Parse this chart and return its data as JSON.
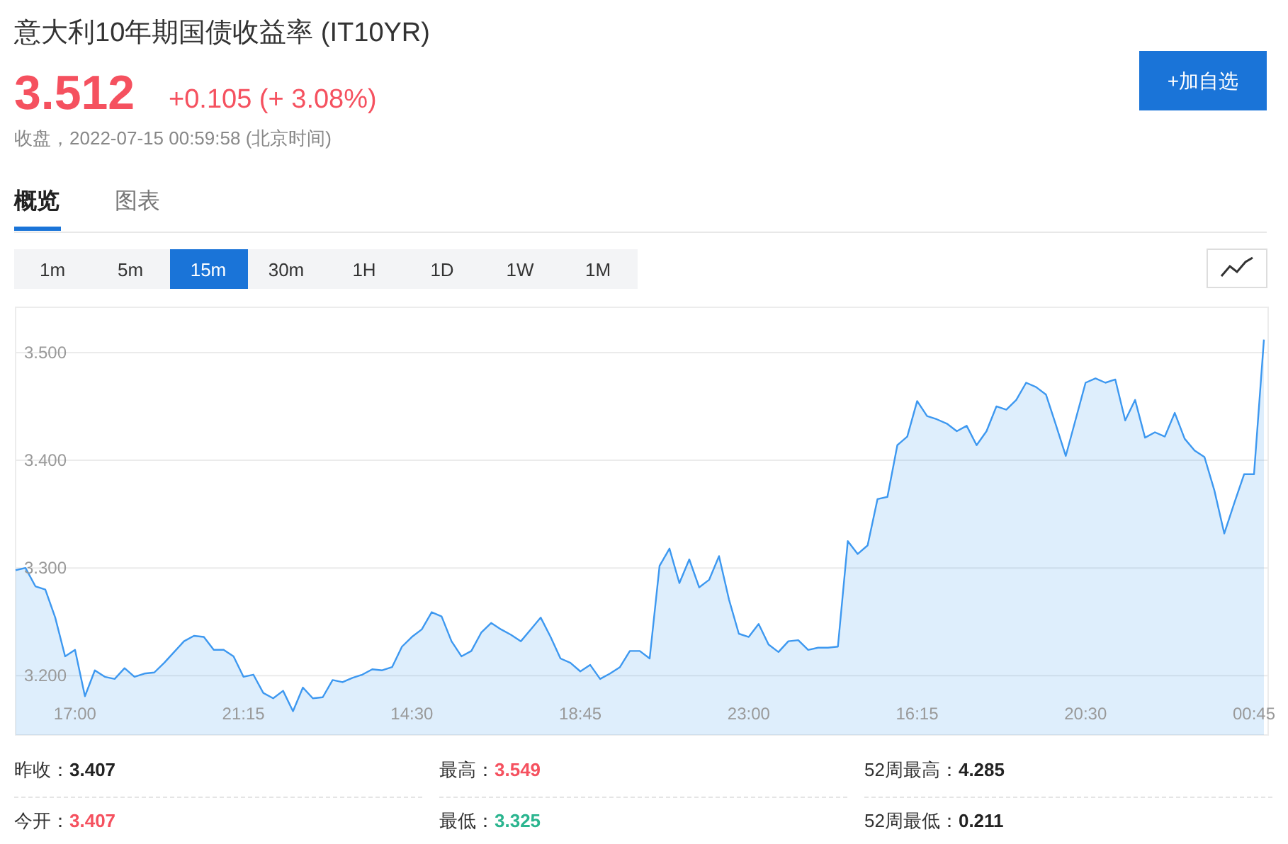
{
  "chart_data": {
    "type": "area",
    "title": "意大利10年期国债收益率 (IT10YR)",
    "annotations": [
      "3.512",
      "+0.105 (+ 3.08%)",
      "收盘，2022-07-15 00:59:58 (北京时间)",
      "+加自选",
      "概览",
      "图表",
      "1m",
      "5m",
      "15m",
      "30m",
      "1H",
      "1D",
      "1W",
      "1M",
      "昨收：3.407",
      "最高：3.549",
      "52周最高：4.285",
      "今开：3.407",
      "最低：3.325",
      "52周最低：0.211"
    ],
    "categories": [
      null,
      null,
      null,
      null,
      null,
      null,
      "17:00",
      null,
      null,
      null,
      null,
      null,
      null,
      null,
      null,
      null,
      null,
      null,
      null,
      null,
      null,
      null,
      null,
      "21:15",
      null,
      null,
      null,
      null,
      null,
      null,
      null,
      null,
      null,
      null,
      null,
      null,
      null,
      null,
      null,
      null,
      "14:30",
      null,
      null,
      null,
      null,
      null,
      null,
      null,
      null,
      null,
      null,
      null,
      null,
      null,
      null,
      null,
      null,
      "18:45",
      null,
      null,
      null,
      null,
      null,
      null,
      null,
      null,
      null,
      null,
      null,
      null,
      null,
      null,
      null,
      null,
      "23:00",
      null,
      null,
      null,
      null,
      null,
      null,
      null,
      null,
      null,
      null,
      null,
      null,
      null,
      null,
      null,
      null,
      "16:15",
      null,
      null,
      null,
      null,
      null,
      null,
      null,
      null,
      null,
      null,
      null,
      null,
      null,
      null,
      null,
      null,
      "20:30",
      null,
      null,
      null,
      null,
      null,
      null,
      null,
      null,
      null,
      null,
      null,
      null,
      null,
      null,
      null,
      null,
      "00:45",
      null
    ],
    "series": [
      {
        "color": "#3d98f0",
        "values": [
          3.298,
          3.3,
          3.283,
          3.28,
          3.254,
          3.218,
          3.224,
          3.181,
          3.205,
          3.199,
          3.197,
          3.207,
          3.199,
          3.202,
          3.203,
          3.212,
          3.222,
          3.232,
          3.237,
          3.236,
          3.224,
          3.224,
          3.218,
          3.199,
          3.201,
          3.184,
          3.179,
          3.186,
          3.167,
          3.189,
          3.179,
          3.18,
          3.196,
          3.194,
          3.198,
          3.201,
          3.206,
          3.205,
          3.208,
          3.227,
          3.236,
          3.243,
          3.259,
          3.255,
          3.232,
          3.218,
          3.223,
          3.24,
          3.249,
          3.243,
          3.238,
          3.232,
          3.243,
          3.254,
          3.236,
          3.216,
          3.212,
          3.204,
          3.21,
          3.197,
          3.202,
          3.208,
          3.223,
          3.223,
          3.216,
          3.302,
          3.318,
          3.286,
          3.308,
          3.282,
          3.289,
          3.311,
          3.271,
          3.239,
          3.236,
          3.248,
          3.229,
          3.222,
          3.232,
          3.233,
          3.224,
          3.226,
          3.226,
          3.227,
          3.325,
          3.313,
          3.321,
          3.364,
          3.366,
          3.414,
          3.422,
          3.455,
          3.441,
          3.438,
          3.434,
          3.427,
          3.432,
          3.414,
          3.427,
          3.45,
          3.447,
          3.456,
          3.472,
          3.468,
          3.461,
          3.433,
          3.404,
          3.438,
          3.472,
          3.476,
          3.472,
          3.475,
          3.437,
          3.456,
          3.421,
          3.426,
          3.422,
          3.444,
          3.42,
          3.409,
          3.403,
          3.372,
          3.332,
          3.36,
          3.387,
          3.387,
          3.512
        ]
      }
    ],
    "ylim": [
      3.145,
      3.542
    ],
    "yticks": [
      {
        "value": 3.2,
        "label": "3.200"
      },
      {
        "value": 3.3,
        "label": "3.300"
      },
      {
        "value": 3.4,
        "label": "3.400"
      },
      {
        "value": 3.5,
        "label": "3.500"
      }
    ],
    "grid": "y",
    "line_style": "solid"
  }
}
